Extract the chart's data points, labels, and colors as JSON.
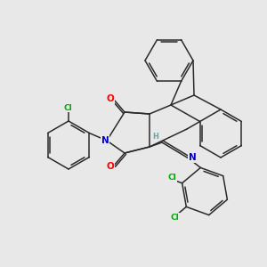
{
  "background_color": "#e8e8e8",
  "bond_color": "#2a2a2a",
  "atom_colors": {
    "O": "#ff0000",
    "N": "#0000cd",
    "Cl": "#00aa00",
    "H": "#5fa8a8",
    "C": "#2a2a2a"
  },
  "figsize": [
    3.0,
    3.0
  ],
  "dpi": 100
}
